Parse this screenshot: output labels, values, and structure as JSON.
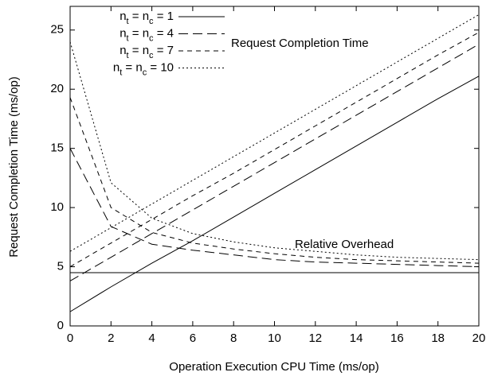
{
  "chart_data": {
    "type": "line",
    "xlabel": "Operation Execution CPU Time (ms/op)",
    "ylabel": "Request Completion Time (ms/op)",
    "annotations": [
      "Request Completion Time",
      "Relative Overhead"
    ],
    "x": [
      0,
      2,
      4,
      6,
      8,
      10,
      12,
      14,
      16,
      18,
      20
    ],
    "xlim": [
      0,
      20
    ],
    "xticks": [
      0,
      2,
      4,
      6,
      8,
      10,
      12,
      14,
      16,
      18,
      20
    ],
    "ylim": [
      0,
      27
    ],
    "yticks": [
      0,
      5,
      10,
      15,
      20,
      25
    ],
    "legend": "upper left",
    "series": [
      {
        "name": "nt = nc = 1",
        "color": "#000000",
        "dash": "none",
        "values": [
          1.2,
          3.3,
          5.3,
          7.2,
          9.2,
          11.2,
          13.2,
          15.2,
          17.2,
          19.2,
          21.1
        ],
        "overhead": [
          4.5,
          4.5,
          4.5,
          4.5,
          4.5,
          4.5,
          4.5,
          4.5,
          4.5,
          4.5,
          4.5
        ]
      },
      {
        "name": "nt = nc = 4",
        "color": "#000000",
        "dash": "12,6",
        "values": [
          3.8,
          5.8,
          7.8,
          9.8,
          11.8,
          13.8,
          15.8,
          17.8,
          19.8,
          21.8,
          23.8
        ],
        "overhead": [
          15.0,
          8.4,
          6.9,
          6.4,
          6.0,
          5.6,
          5.4,
          5.3,
          5.2,
          5.1,
          5.0
        ]
      },
      {
        "name": "nt = nc = 7",
        "color": "#000000",
        "dash": "6,5",
        "values": [
          5.0,
          7.0,
          9.0,
          11.0,
          12.9,
          14.9,
          16.9,
          18.9,
          20.9,
          22.9,
          24.8
        ],
        "overhead": [
          19.3,
          10.0,
          7.9,
          7.0,
          6.5,
          6.1,
          5.8,
          5.6,
          5.5,
          5.4,
          5.3
        ]
      },
      {
        "name": "nt = nc = 10",
        "color": "#000000",
        "dash": "2,3",
        "values": [
          6.3,
          8.3,
          10.3,
          12.3,
          14.3,
          16.3,
          18.3,
          20.3,
          22.3,
          24.3,
          26.3
        ],
        "overhead": [
          24.0,
          12.1,
          9.1,
          7.8,
          7.1,
          6.6,
          6.3,
          6.0,
          5.8,
          5.7,
          5.6
        ]
      }
    ]
  }
}
